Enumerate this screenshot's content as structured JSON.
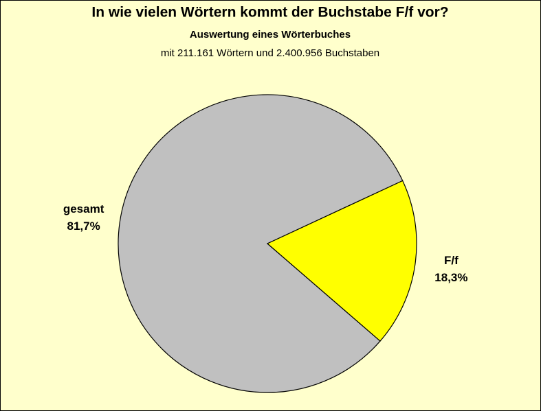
{
  "chart_data": {
    "type": "pie",
    "title": "In wie vielen Wörtern kommt der Buchstabe F/f vor?",
    "subtitle": "Auswertung eines Wörterbuches",
    "subtitle2": "mit 211.161 Wörtern und 2.400.956 Buchstaben",
    "categories": [
      "gesamt",
      "F/f"
    ],
    "values": [
      81.7,
      18.3
    ],
    "value_labels": [
      "81,7%",
      "18,3%"
    ],
    "colors": [
      "#c0c0c0",
      "#ffff00"
    ]
  }
}
